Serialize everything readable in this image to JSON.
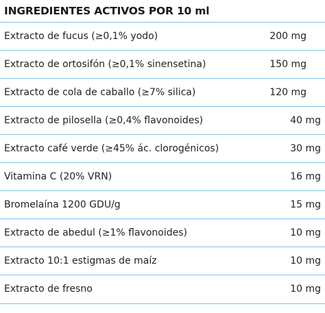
{
  "title": "INGREDIENTES ACTIVOS POR 10 ml",
  "colors": {
    "divider": "#7ec3e6",
    "text": "#222222"
  },
  "rows": [
    {
      "name": "Extracto de fucus (≥0,1% yodo)",
      "amount": "200 mg"
    },
    {
      "name": "Extracto de ortosifón (≥0,1% sinensetina)",
      "amount": "150 mg"
    },
    {
      "name": "Extracto de cola de caballo (≥7% silica)",
      "amount": "120 mg"
    },
    {
      "name": "Extracto de pilosella (≥0,4% flavonoides)",
      "amount": "40 mg"
    },
    {
      "name": "Extracto café verde (≥45% ác. clorogénicos)",
      "amount": "30 mg"
    },
    {
      "name": "Vitamina C (20% VRN)",
      "amount": "16 mg"
    },
    {
      "name": "Bromelaína 1200 GDU/g",
      "amount": "15 mg"
    },
    {
      "name": "Extracto de abedul (≥1% flavonoides)",
      "amount": "10 mg"
    },
    {
      "name": "Extracto 10:1 estigmas de maíz",
      "amount": "10 mg"
    },
    {
      "name": "Extracto de fresno",
      "amount": "10 mg"
    }
  ]
}
